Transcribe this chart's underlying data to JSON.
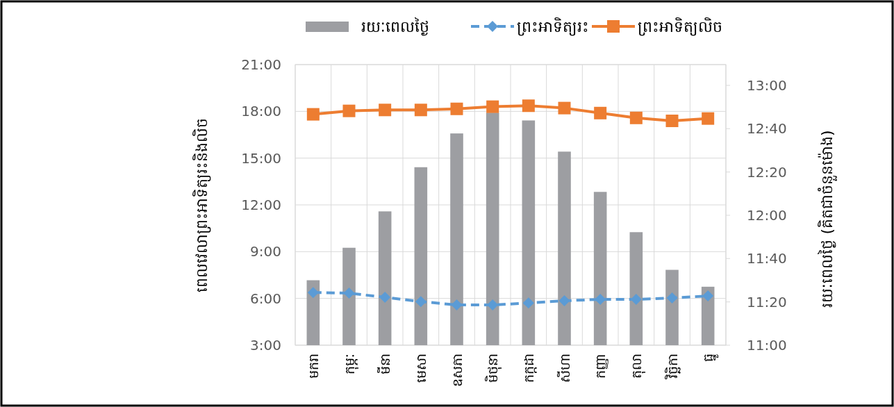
{
  "chart_data": {
    "type": "line",
    "categories": [
      "មករា",
      "កុម្ភៈ",
      "មីនា",
      "មេសា",
      "ឧសភា",
      "មិថុនា",
      "កក្កដា",
      "សីហា",
      "កញ្ញា",
      "តុលា",
      "វិច្ឆិកា",
      "ធ្នូ"
    ],
    "ylabel": "ពេលវេលាព្រះអាទិត្យរះនិងលិច",
    "y2label": "រយៈពេលថ្ងៃ (គិតជាចំនួនម៉ោង)",
    "ylim": [
      3,
      21
    ],
    "yticks": [
      {
        "value": 3,
        "label": "3:00"
      },
      {
        "value": 6,
        "label": "6:00"
      },
      {
        "value": 9,
        "label": "9:00"
      },
      {
        "value": 12,
        "label": "12:00"
      },
      {
        "value": 15,
        "label": "15:00"
      },
      {
        "value": 18,
        "label": "18:00"
      },
      {
        "value": 21,
        "label": "21:00"
      }
    ],
    "y2lim": [
      11,
      13.16
    ],
    "y2ticks": [
      {
        "value": 11,
        "label": "11:00"
      },
      {
        "value": 11.333,
        "label": "11:20"
      },
      {
        "value": 11.667,
        "label": "11:40"
      },
      {
        "value": 12,
        "label": "12:00"
      },
      {
        "value": 12.333,
        "label": "12:20"
      },
      {
        "value": 12.667,
        "label": "12:40"
      },
      {
        "value": 13,
        "label": "13:00"
      }
    ],
    "grid": true,
    "legend": "top",
    "series": [
      {
        "name": "រយៈពេលថ្ងៃ",
        "type": "bar",
        "axis": "y2",
        "color": "#9d9ea2",
        "values": [
          11.5,
          11.75,
          12.03,
          12.37,
          12.63,
          12.79,
          12.73,
          12.49,
          12.18,
          11.87,
          11.58,
          11.45
        ]
      },
      {
        "name": "ព្រះអាទិត្យរះ",
        "color": "#5b9bd5",
        "marker": "diamond",
        "line_style": "dashed",
        "values": [
          6.38,
          6.34,
          6.07,
          5.8,
          5.58,
          5.58,
          5.71,
          5.85,
          5.94,
          5.94,
          6.03,
          6.16
        ]
      },
      {
        "name": "ព្រះអាទិត្យលិច",
        "color": "#ed7d31",
        "marker": "square",
        "line_style": "solid",
        "values": [
          17.81,
          18.03,
          18.09,
          18.09,
          18.16,
          18.3,
          18.36,
          18.21,
          17.89,
          17.58,
          17.39,
          17.54
        ]
      }
    ]
  }
}
